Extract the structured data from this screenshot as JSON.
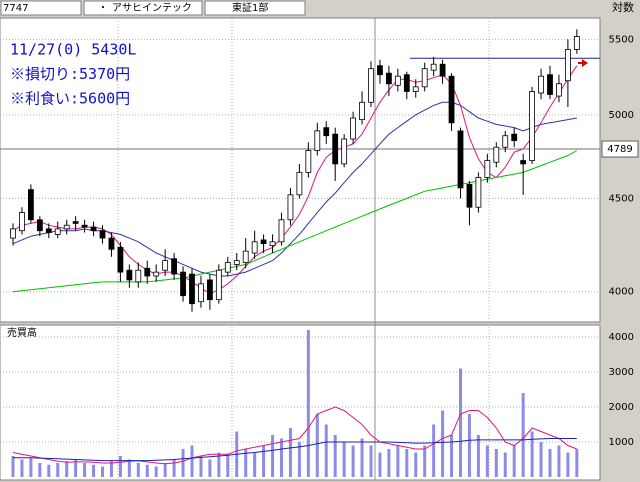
{
  "header": {
    "code": "7747",
    "dot": "・",
    "name": "アサヒインテック",
    "market": "東証1部",
    "scale": "対数"
  },
  "chart_data": [
    {
      "type": "candlestick",
      "annotations": [
        "11/27(0) 5430L",
        "※損切り:5370円",
        "※利食い:5600円"
      ],
      "open": [
        4280,
        4320,
        4550,
        4380,
        4330,
        4300,
        4330,
        4370,
        4350,
        4340,
        4320,
        4280,
        4230,
        4110,
        4050,
        4120,
        4080,
        4110,
        4170,
        4100,
        4090,
        3950,
        4060,
        3960,
        4100,
        4140,
        4150,
        4200,
        4270,
        4240,
        4260,
        4380,
        4520,
        4650,
        4780,
        4920,
        4880,
        4700,
        4850,
        4970,
        5080,
        5320,
        5270,
        5190,
        5260,
        5150,
        5180,
        5290,
        5330,
        5250,
        4900,
        4580,
        4450,
        4620,
        4710,
        4800,
        4880,
        4720,
        4720,
        5140,
        5260,
        5120,
        5220,
        5430
      ],
      "high": [
        4360,
        4450,
        4580,
        4400,
        4360,
        4370,
        4380,
        4400,
        4380,
        4370,
        4350,
        4310,
        4260,
        4140,
        4150,
        4160,
        4140,
        4220,
        4200,
        4130,
        4120,
        4080,
        4090,
        4140,
        4180,
        4200,
        4280,
        4320,
        4300,
        4300,
        4420,
        4560,
        4700,
        4830,
        4950,
        4960,
        4920,
        4880,
        5020,
        5150,
        5350,
        5360,
        5320,
        5300,
        5280,
        5230,
        5340,
        5380,
        5360,
        5270,
        4920,
        4600,
        4650,
        4760,
        4830,
        4900,
        4920,
        4760,
        5180,
        5300,
        5320,
        5260,
        5500,
        5570
      ],
      "low": [
        4240,
        4300,
        4360,
        4290,
        4280,
        4280,
        4300,
        4320,
        4310,
        4290,
        4250,
        4180,
        4050,
        4020,
        4020,
        4040,
        4050,
        4080,
        4060,
        3950,
        3900,
        3920,
        3910,
        3940,
        4080,
        4110,
        4120,
        4170,
        4200,
        4200,
        4240,
        4350,
        4500,
        4620,
        4750,
        4820,
        4600,
        4680,
        4820,
        4940,
        5050,
        5200,
        5120,
        5150,
        5100,
        5110,
        5150,
        5250,
        5200,
        4900,
        4500,
        4350,
        4420,
        4590,
        4680,
        4770,
        4800,
        4520,
        4700,
        5100,
        5100,
        5080,
        5050,
        5400
      ],
      "close": [
        4330,
        4420,
        4380,
        4320,
        4310,
        4330,
        4350,
        4360,
        4340,
        4320,
        4280,
        4220,
        4100,
        4060,
        4110,
        4080,
        4100,
        4160,
        4090,
        3980,
        3940,
        4040,
        3960,
        4110,
        4150,
        4160,
        4210,
        4260,
        4250,
        4260,
        4380,
        4520,
        4650,
        4780,
        4900,
        4870,
        4700,
        4850,
        4980,
        5080,
        5300,
        5260,
        5200,
        5250,
        5150,
        5180,
        5300,
        5330,
        5250,
        4950,
        4560,
        4450,
        4620,
        4720,
        4800,
        4870,
        4840,
        4700,
        5150,
        5250,
        5130,
        5200,
        5430,
        5520
      ],
      "up_color": "#ffffff",
      "down_color": "#000000",
      "series": [
        {
          "color": "#e0187a",
          "values": [
            4320,
            4350,
            4360,
            4370,
            4350,
            4340,
            4330,
            4330,
            4340,
            4340,
            4330,
            4300,
            4240,
            4180,
            4140,
            4110,
            4090,
            4100,
            4100,
            4080,
            4050,
            4020,
            3990,
            4010,
            4040,
            4080,
            4130,
            4180,
            4210,
            4230,
            4280,
            4340,
            4410,
            4510,
            4650,
            4740,
            4780,
            4800,
            4820,
            4880,
            4980,
            5080,
            5160,
            5230,
            5230,
            5210,
            5220,
            5240,
            5260,
            5200,
            5060,
            4860,
            4730,
            4650,
            4620,
            4680,
            4770,
            4790,
            4860,
            4950,
            5050,
            5140,
            5230,
            5320
          ]
        },
        {
          "color": "#3030b0",
          "values": [
            4250,
            4270,
            4290,
            4300,
            4310,
            4320,
            4320,
            4320,
            4330,
            4320,
            4320,
            4310,
            4300,
            4280,
            4260,
            4230,
            4200,
            4180,
            4160,
            4140,
            4120,
            4100,
            4090,
            4080,
            4080,
            4090,
            4100,
            4120,
            4140,
            4160,
            4200,
            4250,
            4300,
            4360,
            4420,
            4480,
            4530,
            4590,
            4650,
            4700,
            4760,
            4820,
            4880,
            4920,
            4960,
            5000,
            5030,
            5060,
            5080,
            5080,
            5060,
            5020,
            4980,
            4960,
            4940,
            4930,
            4920,
            4900,
            4920,
            4940,
            4950,
            4960,
            4970,
            4980
          ]
        },
        {
          "color": "#00c000",
          "values": [
            4000,
            4005,
            4010,
            4015,
            4020,
            4025,
            4030,
            4035,
            4040,
            4045,
            4050,
            4050,
            4050,
            4050,
            4050,
            4050,
            4055,
            4060,
            4065,
            4070,
            4080,
            4090,
            4100,
            4110,
            4120,
            4130,
            4140,
            4160,
            4180,
            4200,
            4220,
            4240,
            4260,
            4280,
            4300,
            4320,
            4340,
            4360,
            4380,
            4400,
            4420,
            4440,
            4460,
            4480,
            4500,
            4520,
            4540,
            4550,
            4560,
            4570,
            4580,
            4590,
            4600,
            4610,
            4620,
            4630,
            4640,
            4650,
            4670,
            4690,
            4710,
            4730,
            4750,
            4780
          ]
        }
      ],
      "hline": 5370,
      "hline_color": "#202090",
      "price_marker": 4789,
      "log_scale": true,
      "grid": true,
      "ylim": [
        3850,
        5650
      ],
      "yticks": [
        4000,
        4500,
        5000,
        5500
      ]
    },
    {
      "type": "bar",
      "title": "売買高",
      "color": "#8c8ce6",
      "values": [
        600,
        500,
        550,
        400,
        350,
        400,
        450,
        500,
        400,
        350,
        300,
        450,
        600,
        500,
        400,
        350,
        300,
        400,
        500,
        800,
        900,
        600,
        500,
        700,
        650,
        1300,
        800,
        700,
        900,
        1200,
        1100,
        1400,
        1000,
        4200,
        1800,
        1500,
        1200,
        1000,
        900,
        1100,
        900,
        700,
        800,
        900,
        800,
        700,
        900,
        1500,
        1900,
        1200,
        3100,
        1800,
        1200,
        900,
        800,
        700,
        900,
        2400,
        1300,
        1000,
        800,
        900,
        700,
        800
      ],
      "series": [
        {
          "color": "#e0187a",
          "values": [
            700,
            650,
            600,
            550,
            500,
            450,
            420,
            430,
            430,
            420,
            400,
            400,
            420,
            450,
            460,
            430,
            400,
            380,
            400,
            450,
            550,
            600,
            650,
            650,
            650,
            750,
            800,
            850,
            900,
            950,
            1000,
            1050,
            1100,
            1400,
            1800,
            1900,
            2000,
            1900,
            1700,
            1500,
            1200,
            1000,
            950,
            900,
            850,
            800,
            800,
            950,
            1100,
            1200,
            1800,
            1900,
            1900,
            1700,
            1400,
            1000,
            900,
            1100,
            1400,
            1300,
            1200,
            1100,
            900,
            800
          ]
        },
        {
          "color": "#2020b0",
          "values": [
            550,
            550,
            550,
            540,
            530,
            520,
            510,
            500,
            490,
            480,
            470,
            470,
            470,
            470,
            470,
            470,
            480,
            490,
            500,
            520,
            540,
            560,
            580,
            600,
            620,
            650,
            680,
            700,
            730,
            760,
            800,
            830,
            860,
            900,
            950,
            1000,
            1000,
            1000,
            1000,
            1000,
            1000,
            1000,
            1000,
            990,
            980,
            970,
            970,
            980,
            990,
            1000,
            1020,
            1050,
            1060,
            1060,
            1060,
            1060,
            1060,
            1060,
            1080,
            1090,
            1100,
            1100,
            1100,
            1100
          ]
        }
      ],
      "grid": true,
      "ylim": [
        0,
        4300
      ],
      "yticks": [
        1000,
        2000,
        3000,
        4000
      ]
    }
  ]
}
